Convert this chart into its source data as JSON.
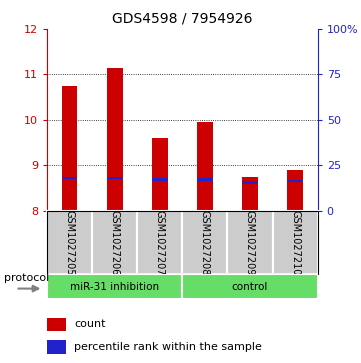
{
  "title": "GDS4598 / 7954926",
  "samples": [
    "GSM1027205",
    "GSM1027206",
    "GSM1027207",
    "GSM1027208",
    "GSM1027209",
    "GSM1027210"
  ],
  "bar_bottoms": [
    8.0,
    8.0,
    8.0,
    8.0,
    8.0,
    8.0
  ],
  "bar_tops": [
    10.75,
    11.15,
    9.6,
    9.95,
    8.75,
    8.9
  ],
  "percentile_values": [
    8.72,
    8.72,
    8.68,
    8.68,
    8.62,
    8.65
  ],
  "ylim": [
    8.0,
    12.0
  ],
  "yticks": [
    8,
    9,
    10,
    11,
    12
  ],
  "right_yticks": [
    0,
    25,
    50,
    75,
    100
  ],
  "right_ytick_labels": [
    "0",
    "25",
    "50",
    "75",
    "100%"
  ],
  "bar_color": "#cc0000",
  "percentile_color": "#2222cc",
  "group1_label": "miR-31 inhibition",
  "group2_label": "control",
  "group_bg_color": "#66dd66",
  "sample_bg_color": "#cccccc",
  "legend_count_label": "count",
  "legend_pct_label": "percentile rank within the sample",
  "protocol_label": "protocol",
  "bar_width": 0.35,
  "title_fontsize": 10,
  "tick_fontsize": 8,
  "sample_fontsize": 7,
  "legend_fontsize": 8
}
